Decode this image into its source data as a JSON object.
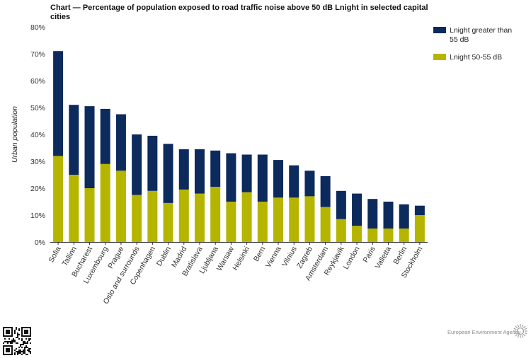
{
  "chart_data": {
    "type": "bar",
    "stacked": true,
    "title": "Chart — Percentage of population exposed to road traffic noise above 50 dB Lnight in selected capital cities",
    "xlabel": "",
    "ylabel": "Urban population",
    "ylim": [
      0,
      80
    ],
    "yticks": [
      "0%",
      "10%",
      "20%",
      "30%",
      "40%",
      "50%",
      "60%",
      "70%",
      "80%"
    ],
    "grid": false,
    "legend_position": "top-right",
    "categories": [
      "Sofia",
      "Tallinn",
      "Bucharest",
      "Luxembourg",
      "Prague",
      "Oslo and surrounds",
      "Copenhagen",
      "Dublin",
      "Madrid",
      "Bratislava",
      "Ljubljana",
      "Warsaw",
      "Helsinki",
      "Bern",
      "Vienna",
      "Vilnius",
      "Zagreb",
      "Amsterdam",
      "Reykjavik",
      "London",
      "Paris",
      "Valletta",
      "Berlin",
      "Stockholm"
    ],
    "series": [
      {
        "name": "Lnight 50-55 dB",
        "color": "#b5b500",
        "values": [
          32,
          25,
          20,
          29,
          26.5,
          17.5,
          19,
          14.5,
          19.5,
          18,
          20.5,
          15,
          18.5,
          15,
          16.5,
          16.5,
          17,
          13,
          8.5,
          6,
          5,
          5,
          5,
          10
        ]
      },
      {
        "name": "Lnight greater than 55 dB",
        "color": "#0d2a5c",
        "values": [
          39,
          26,
          30.5,
          20.5,
          21,
          22.5,
          20.5,
          22,
          15,
          16.5,
          13.5,
          18,
          14,
          17.5,
          14,
          12,
          9.5,
          11.5,
          10.5,
          12,
          11,
          10,
          9,
          3.5
        ]
      }
    ],
    "legend": [
      {
        "label_lines": [
          "Lnight greater than",
          "55 dB"
        ],
        "color": "#0d2a5c"
      },
      {
        "label_lines": [
          "Lnight 50-55 dB"
        ],
        "color": "#b5b500"
      }
    ]
  },
  "footer": {
    "source_label": "European Environment Agency"
  }
}
